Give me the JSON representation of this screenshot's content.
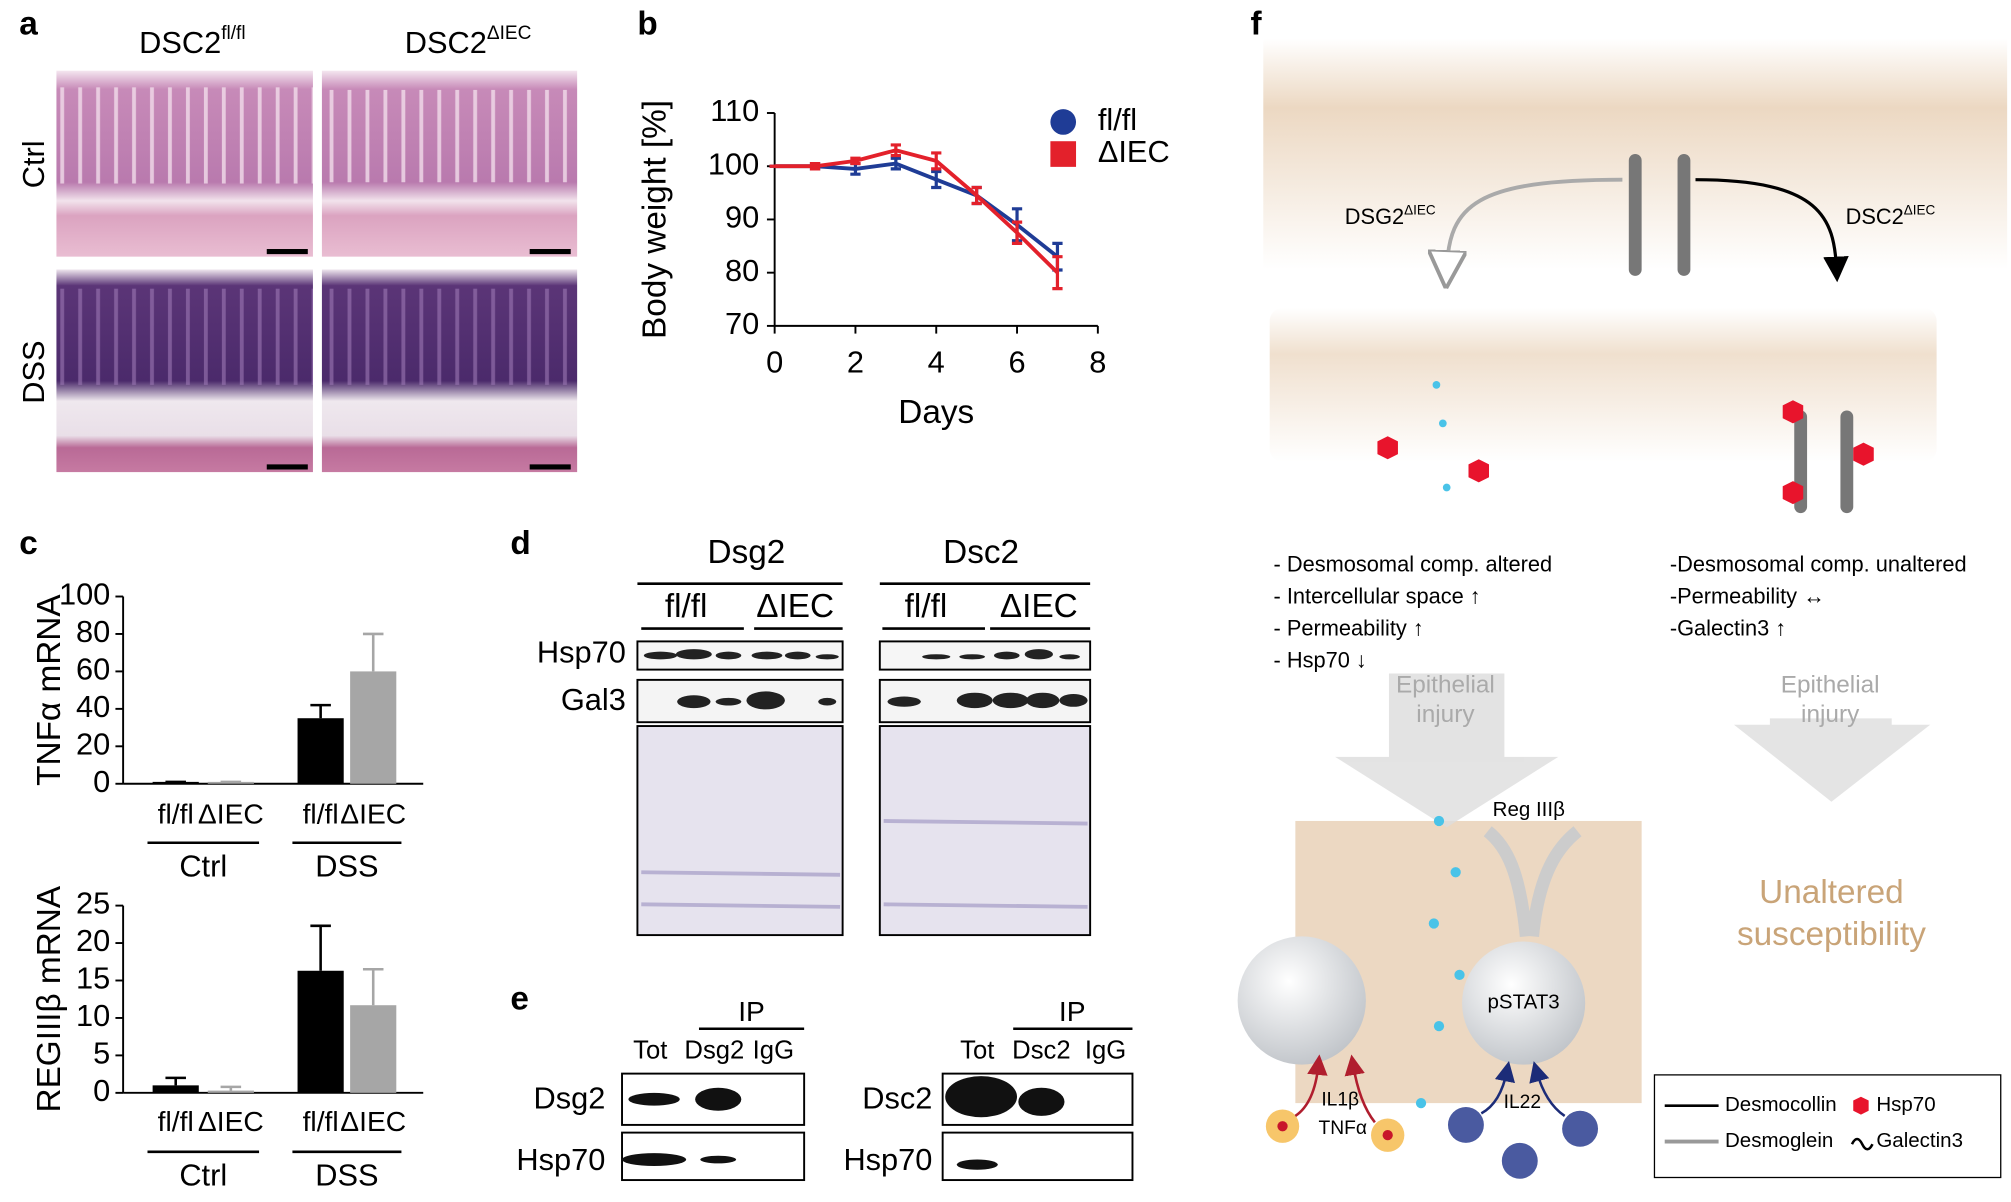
{
  "panel_labels": [
    "a",
    "b",
    "c",
    "d",
    "e",
    "f"
  ],
  "panel_a": {
    "columns": [
      {
        "text": "DSC2",
        "sup": "fl/fl"
      },
      {
        "text": "DSC2",
        "sup": "ΔIEC"
      }
    ],
    "rows": [
      "Ctrl",
      "DSS"
    ]
  },
  "chart_data": [
    {
      "type": "line",
      "ylabel": "Body weight [%]",
      "xlabel": "Days",
      "x": [
        0,
        1,
        2,
        3,
        4,
        5,
        6,
        7
      ],
      "xlim": [
        0,
        8
      ],
      "xticks": [
        0,
        2,
        4,
        6,
        8
      ],
      "ylim": [
        70,
        110
      ],
      "yticks": [
        70,
        80,
        90,
        100,
        110
      ],
      "series": [
        {
          "name": "fl/fl",
          "color": "#1f3c96",
          "marker": "circle",
          "values": [
            100,
            100,
            99.5,
            100.5,
            97.5,
            94.5,
            89,
            83
          ],
          "errors": [
            0,
            0.5,
            1,
            1,
            1.5,
            1.5,
            3,
            2.5
          ]
        },
        {
          "name": "ΔIEC",
          "color": "#e3212b",
          "marker": "square",
          "values": [
            100,
            100,
            101,
            103,
            101,
            94.5,
            87.5,
            80
          ],
          "errors": [
            0,
            0.5,
            0.5,
            1,
            1.5,
            1.5,
            2,
            3
          ]
        }
      ]
    },
    {
      "type": "bar",
      "ylabel": "TNFα mRNA",
      "categories": [
        "fl/fl",
        "ΔIEC",
        "fl/fl",
        "ΔIEC"
      ],
      "groups": [
        "Ctrl",
        "DSS"
      ],
      "values": [
        1,
        1,
        35,
        60
      ],
      "errors": [
        0,
        0,
        7,
        20
      ],
      "colors": [
        "#000000",
        "#a6a6a6",
        "#000000",
        "#a6a6a6"
      ],
      "ylim": [
        0,
        100
      ],
      "yticks": [
        0,
        20,
        40,
        60,
        80,
        100
      ]
    },
    {
      "type": "bar",
      "ylabel": "REGIIIβ mRNA",
      "categories": [
        "fl/fl",
        "ΔIEC",
        "fl/fl",
        "ΔIEC"
      ],
      "groups": [
        "Ctrl",
        "DSS"
      ],
      "values": [
        1,
        0.3,
        16.3,
        11.7
      ],
      "errors": [
        1,
        0.5,
        6,
        4.8
      ],
      "colors": [
        "#000000",
        "#a6a6a6",
        "#000000",
        "#a6a6a6"
      ],
      "ylim": [
        0,
        25
      ],
      "yticks": [
        0,
        5,
        10,
        15,
        20,
        25
      ]
    }
  ],
  "panel_d": {
    "groups": [
      "Dsg2",
      "Dsc2"
    ],
    "genotypes": [
      "fl/fl",
      "ΔIEC",
      "fl/fl",
      "ΔIEC"
    ],
    "rows": [
      "Hsp70",
      "Gal3"
    ]
  },
  "panel_e": {
    "blots": [
      {
        "ip": "IP",
        "lanes": [
          "Tot",
          "Dsg2",
          "IgG"
        ],
        "rows": [
          "Dsg2",
          "Hsp70"
        ]
      },
      {
        "ip": "IP",
        "lanes": [
          "Tot",
          "Dsc2",
          "IgG"
        ],
        "rows": [
          "Dsc2",
          "Hsp70"
        ]
      }
    ]
  },
  "panel_f": {
    "left_arrow": {
      "text": "DSG2",
      "sup": "ΔIEC"
    },
    "right_arrow": {
      "text": "DSC2",
      "sup": "ΔIEC"
    },
    "left_list": [
      "- Desmosomal comp. altered",
      "- Intercellular space ↑",
      "- Permeability ↑",
      "- Hsp70 ↓"
    ],
    "right_list": [
      "-Desmosomal comp. unaltered",
      "-Permeability ↔",
      "-Galectin3 ↑"
    ],
    "injury": [
      "Epithelial",
      "injury"
    ],
    "reg": "Reg IIIβ",
    "pstat": "pSTAT3",
    "cytokines": [
      "IL1β",
      "TNFα"
    ],
    "il22": "IL22",
    "outcome": [
      "Unaltered",
      "susceptibility"
    ],
    "legend": [
      "Desmocollin",
      "Hsp70",
      "Desmoglein",
      "Galectin3"
    ]
  }
}
